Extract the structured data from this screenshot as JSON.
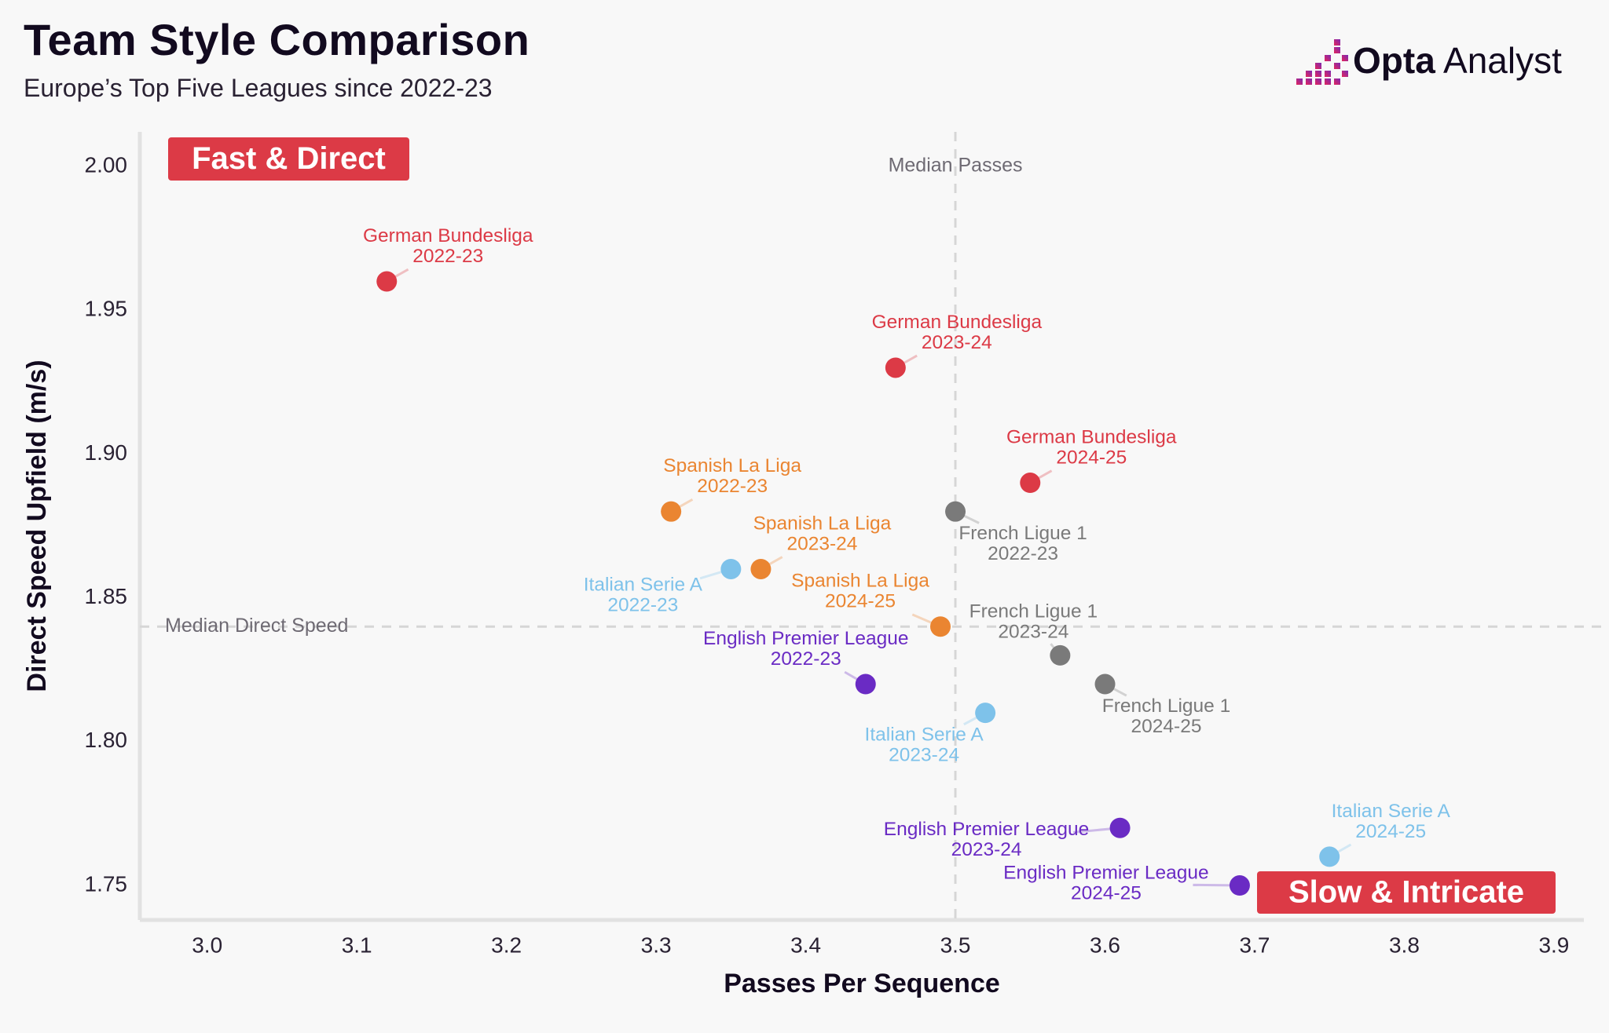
{
  "header": {
    "title": "Team Style Comparison",
    "subtitle": "Europe’s Top Five Leagues since 2022-23",
    "logo_bold": "Opta",
    "logo_light": " Analyst"
  },
  "colors": {
    "background": "#f8f8f8",
    "bundesliga": "#dc3a46",
    "laliga": "#ea8531",
    "seriea": "#7ec2ea",
    "ligue1": "#7a7a7a",
    "premier_league": "#6a2bc4",
    "badge": "#dc3a46",
    "logo_gradient_start": "#e4245b",
    "logo_gradient_end": "#7b2ab5"
  },
  "chart_data": {
    "type": "scatter",
    "xlabel": "Passes Per Sequence",
    "ylabel": "Direct Speed Upfield (m/s)",
    "xlim": [
      2.955,
      3.92
    ],
    "ylim": [
      1.738,
      2.012
    ],
    "xticks": [
      "3.0",
      "3.1",
      "3.2",
      "3.3",
      "3.4",
      "3.5",
      "3.6",
      "3.7",
      "3.8",
      "3.9"
    ],
    "yticks": [
      "1.75",
      "1.80",
      "1.85",
      "1.90",
      "1.95",
      "2.00"
    ],
    "grid": false,
    "reference_lines": {
      "median_passes": {
        "x": 3.5,
        "label": "Median Passes"
      },
      "median_direct_speed": {
        "y": 1.84,
        "label": "Median Direct Speed"
      }
    },
    "quadrant_labels": {
      "top_left": "Fast & Direct",
      "bottom_right": "Slow & Intricate"
    },
    "points": [
      {
        "league": "German Bundesliga",
        "season": "2022-23",
        "color_key": "bundesliga",
        "x": 3.12,
        "y": 1.96
      },
      {
        "league": "German Bundesliga",
        "season": "2023-24",
        "color_key": "bundesliga",
        "x": 3.46,
        "y": 1.93
      },
      {
        "league": "German Bundesliga",
        "season": "2024-25",
        "color_key": "bundesliga",
        "x": 3.55,
        "y": 1.89
      },
      {
        "league": "Spanish La Liga",
        "season": "2022-23",
        "color_key": "laliga",
        "x": 3.31,
        "y": 1.88
      },
      {
        "league": "Spanish La Liga",
        "season": "2023-24",
        "color_key": "laliga",
        "x": 3.37,
        "y": 1.86
      },
      {
        "league": "Spanish La Liga",
        "season": "2024-25",
        "color_key": "laliga",
        "x": 3.49,
        "y": 1.84
      },
      {
        "league": "Italian Serie A",
        "season": "2022-23",
        "color_key": "seriea",
        "x": 3.35,
        "y": 1.86
      },
      {
        "league": "Italian Serie A",
        "season": "2023-24",
        "color_key": "seriea",
        "x": 3.52,
        "y": 1.81
      },
      {
        "league": "Italian Serie A",
        "season": "2024-25",
        "color_key": "seriea",
        "x": 3.75,
        "y": 1.76
      },
      {
        "league": "French Ligue 1",
        "season": "2022-23",
        "color_key": "ligue1",
        "x": 3.5,
        "y": 1.88
      },
      {
        "league": "French Ligue 1",
        "season": "2023-24",
        "color_key": "ligue1",
        "x": 3.57,
        "y": 1.83
      },
      {
        "league": "French Ligue 1",
        "season": "2024-25",
        "color_key": "ligue1",
        "x": 3.6,
        "y": 1.82
      },
      {
        "league": "English Premier League",
        "season": "2022-23",
        "color_key": "premier_league",
        "x": 3.44,
        "y": 1.82
      },
      {
        "league": "English Premier League",
        "season": "2023-24",
        "color_key": "premier_league",
        "x": 3.61,
        "y": 1.77
      },
      {
        "league": "English Premier League",
        "season": "2024-25",
        "color_key": "premier_league",
        "x": 3.69,
        "y": 1.75
      }
    ]
  }
}
